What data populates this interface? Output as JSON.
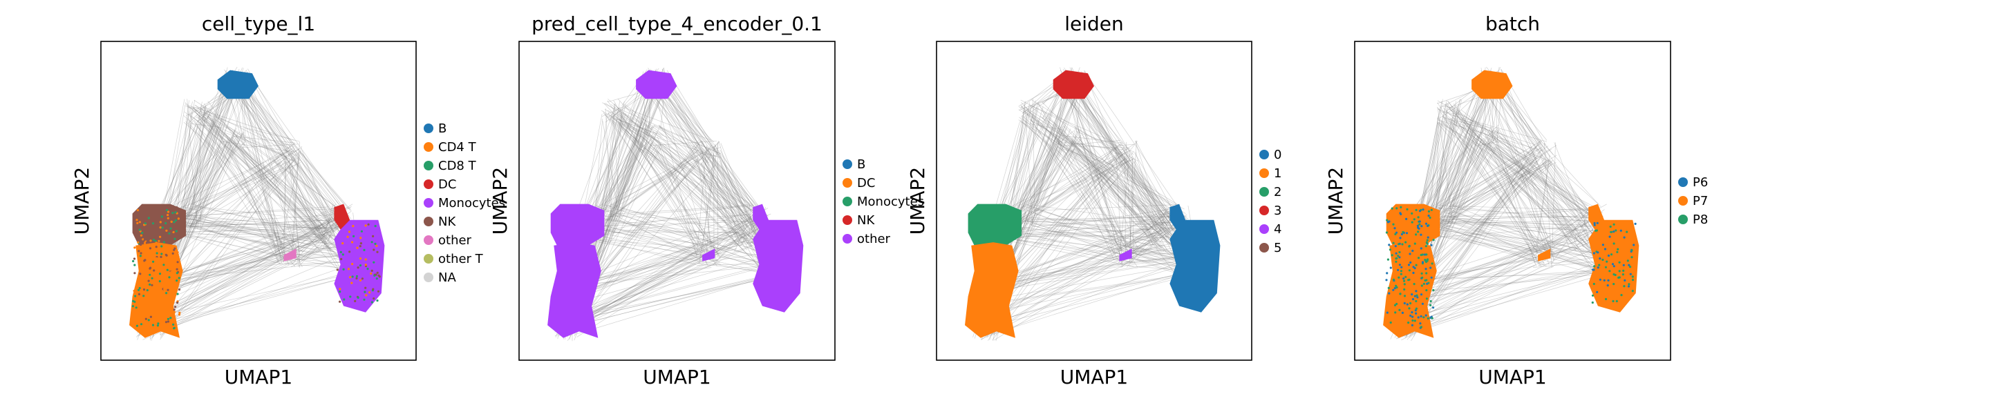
{
  "chart_data": [
    {
      "type": "scatter",
      "title": "cell_type_l1",
      "xlabel": "UMAP1",
      "ylabel": "UMAP2",
      "grid": false,
      "legend_position": "right",
      "legend": [
        {
          "label": "B",
          "color": "#1f77b4"
        },
        {
          "label": "CD4 T",
          "color": "#ff7f0e"
        },
        {
          "label": "CD8 T",
          "color": "#279e68"
        },
        {
          "label": "DC",
          "color": "#d62728"
        },
        {
          "label": "Monocytes",
          "color": "#aa40fc"
        },
        {
          "label": "NK",
          "color": "#8c564b"
        },
        {
          "label": "other",
          "color": "#e377c2"
        },
        {
          "label": "other T",
          "color": "#b5bd61"
        },
        {
          "label": "NA",
          "color": "#d3d3d3"
        }
      ],
      "clusters": {
        "top": "B",
        "left_upper": "NK",
        "left_lower": "CD4 T",
        "right": "Monocytes",
        "right_tip": "DC",
        "mid_small": "other"
      }
    },
    {
      "type": "scatter",
      "title": "pred_cell_type_4_encoder_0.1",
      "xlabel": "UMAP1",
      "ylabel": "UMAP2",
      "grid": false,
      "legend_position": "right",
      "legend": [
        {
          "label": "B",
          "color": "#1f77b4"
        },
        {
          "label": "DC",
          "color": "#ff7f0e"
        },
        {
          "label": "Monocytes",
          "color": "#279e68"
        },
        {
          "label": "NK",
          "color": "#d62728"
        },
        {
          "label": "other",
          "color": "#aa40fc"
        }
      ],
      "clusters": {
        "top": "other",
        "left_upper": "other",
        "left_lower": "other",
        "right": "other",
        "right_tip": "other",
        "mid_small": "other"
      }
    },
    {
      "type": "scatter",
      "title": "leiden",
      "xlabel": "UMAP1",
      "ylabel": "UMAP2",
      "grid": false,
      "legend_position": "right",
      "legend": [
        {
          "label": "0",
          "color": "#1f77b4"
        },
        {
          "label": "1",
          "color": "#ff7f0e"
        },
        {
          "label": "2",
          "color": "#279e68"
        },
        {
          "label": "3",
          "color": "#d62728"
        },
        {
          "label": "4",
          "color": "#aa40fc"
        },
        {
          "label": "5",
          "color": "#8c564b"
        }
      ],
      "clusters": {
        "top": "3",
        "left_upper": "2",
        "left_lower": "1",
        "right": "0",
        "right_tip": "0",
        "mid_small": "4"
      }
    },
    {
      "type": "scatter",
      "title": "batch",
      "xlabel": "UMAP1",
      "ylabel": "UMAP2",
      "grid": false,
      "legend_position": "right",
      "legend": [
        {
          "label": "P6",
          "color": "#1f77b4"
        },
        {
          "label": "P7",
          "color": "#ff7f0e"
        },
        {
          "label": "P8",
          "color": "#279e68"
        }
      ],
      "clusters": {
        "top": "P7",
        "left_upper": "P7",
        "left_lower": "P7",
        "right": "P7",
        "right_tip": "P7",
        "mid_small": "P7"
      }
    }
  ]
}
